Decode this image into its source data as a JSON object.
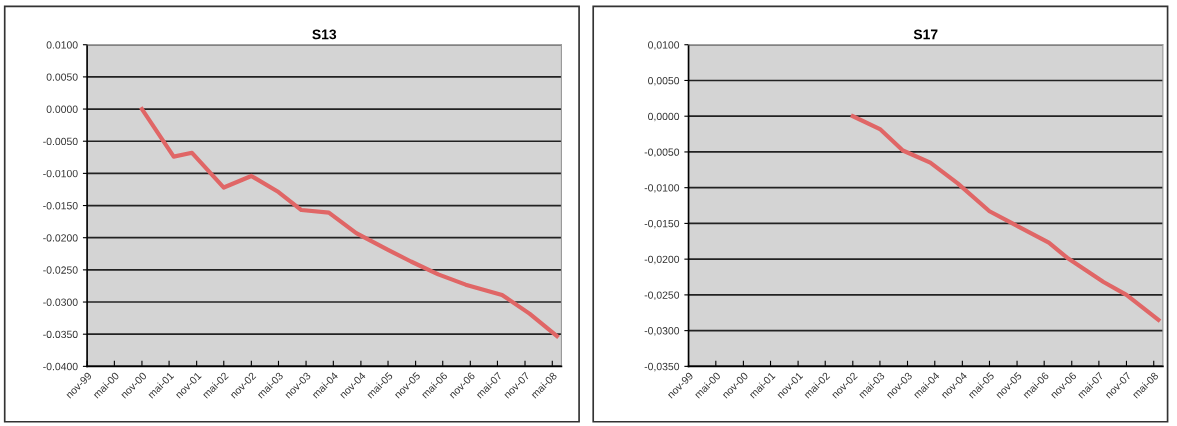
{
  "chart_data": [
    {
      "type": "line",
      "title": "S13",
      "x": [
        "2000-11",
        "2001-06",
        "2001-10",
        "2002-05",
        "2002-11",
        "2003-05",
        "2003-10",
        "2004-04",
        "2004-10",
        "2005-05",
        "2005-10",
        "2006-04",
        "2006-10",
        "2007-06",
        "2007-12",
        "2008-06"
      ],
      "series": [
        {
          "color": "#e06666",
          "values": [
            0.0,
            -0.0074,
            -0.0068,
            -0.0122,
            -0.0104,
            -0.0129,
            -0.0157,
            -0.0161,
            -0.0193,
            -0.0219,
            -0.0237,
            -0.0257,
            -0.0273,
            -0.0289,
            -0.0318,
            -0.0353
          ]
        }
      ],
      "xlim": [
        "1999-11",
        "2008-07"
      ],
      "xticks": [
        {
          "value": "1999-11",
          "label": "nov-99"
        },
        {
          "value": "2000-05",
          "label": "mai-00"
        },
        {
          "value": "2000-11",
          "label": "nov-00"
        },
        {
          "value": "2001-05",
          "label": "mai-01"
        },
        {
          "value": "2001-11",
          "label": "nov-01"
        },
        {
          "value": "2002-05",
          "label": "mai-02"
        },
        {
          "value": "2002-11",
          "label": "nov-02"
        },
        {
          "value": "2003-05",
          "label": "mai-03"
        },
        {
          "value": "2003-11",
          "label": "nov-03"
        },
        {
          "value": "2004-05",
          "label": "mai-04"
        },
        {
          "value": "2004-11",
          "label": "nov-04"
        },
        {
          "value": "2005-05",
          "label": "mai-05"
        },
        {
          "value": "2005-11",
          "label": "nov-05"
        },
        {
          "value": "2006-05",
          "label": "mai-06"
        },
        {
          "value": "2006-11",
          "label": "nov-06"
        },
        {
          "value": "2007-05",
          "label": "mai-07"
        },
        {
          "value": "2007-11",
          "label": "nov-07"
        },
        {
          "value": "2008-05",
          "label": "mai-08"
        }
      ],
      "ylim": [
        -0.04,
        0.01
      ],
      "yticks": [
        {
          "value": 0.01,
          "label": "0.0100"
        },
        {
          "value": 0.005,
          "label": "0.0050"
        },
        {
          "value": 0.0,
          "label": "0.0000"
        },
        {
          "value": -0.005,
          "label": "-0.0050"
        },
        {
          "value": -0.01,
          "label": "-0.0100"
        },
        {
          "value": -0.015,
          "label": "-0.0150"
        },
        {
          "value": -0.02,
          "label": "-0.0200"
        },
        {
          "value": -0.025,
          "label": "-0.0250"
        },
        {
          "value": -0.03,
          "label": "-0.0300"
        },
        {
          "value": -0.035,
          "label": "-0.0350"
        },
        {
          "value": -0.04,
          "label": "-0.0400"
        }
      ],
      "grid": "y",
      "marker": "none",
      "line_style": "solid"
    },
    {
      "type": "line",
      "title": "S17",
      "x": [
        "2002-11",
        "2003-05",
        "2003-10",
        "2004-04",
        "2004-10",
        "2005-05",
        "2005-10",
        "2006-06",
        "2006-10",
        "2007-06",
        "2007-11",
        "2008-06"
      ],
      "series": [
        {
          "color": "#e06666",
          "values": [
            0.0,
            -0.0018,
            -0.0048,
            -0.0065,
            -0.0094,
            -0.0133,
            -0.015,
            -0.0177,
            -0.0198,
            -0.0232,
            -0.025,
            -0.0285
          ]
        }
      ],
      "xlim": [
        "1999-11",
        "2008-07"
      ],
      "xticks": [
        {
          "value": "1999-11",
          "label": "nov-99"
        },
        {
          "value": "2000-05",
          "label": "mai-00"
        },
        {
          "value": "2000-11",
          "label": "nov-00"
        },
        {
          "value": "2001-05",
          "label": "mai-01"
        },
        {
          "value": "2001-11",
          "label": "nov-01"
        },
        {
          "value": "2002-05",
          "label": "mai-02"
        },
        {
          "value": "2002-11",
          "label": "nov-02"
        },
        {
          "value": "2003-05",
          "label": "mai-03"
        },
        {
          "value": "2003-11",
          "label": "nov-03"
        },
        {
          "value": "2004-05",
          "label": "mai-04"
        },
        {
          "value": "2004-11",
          "label": "nov-04"
        },
        {
          "value": "2005-05",
          "label": "mai-05"
        },
        {
          "value": "2005-11",
          "label": "nov-05"
        },
        {
          "value": "2006-05",
          "label": "mai-06"
        },
        {
          "value": "2006-11",
          "label": "nov-06"
        },
        {
          "value": "2007-05",
          "label": "mai-07"
        },
        {
          "value": "2007-11",
          "label": "nov-07"
        },
        {
          "value": "2008-05",
          "label": "mai-08"
        }
      ],
      "ylim": [
        -0.035,
        0.01
      ],
      "yticks": [
        {
          "value": 0.01,
          "label": "0,0100"
        },
        {
          "value": 0.005,
          "label": "0,0050"
        },
        {
          "value": 0.0,
          "label": "0,0000"
        },
        {
          "value": -0.005,
          "label": "-0,0050"
        },
        {
          "value": -0.01,
          "label": "-0,0100"
        },
        {
          "value": -0.015,
          "label": "-0,0150"
        },
        {
          "value": -0.02,
          "label": "-0,0200"
        },
        {
          "value": -0.025,
          "label": "-0,0250"
        },
        {
          "value": -0.03,
          "label": "-0,0300"
        },
        {
          "value": -0.035,
          "label": "-0,0350"
        }
      ],
      "grid": "y",
      "marker": "none",
      "line_style": "solid"
    }
  ]
}
